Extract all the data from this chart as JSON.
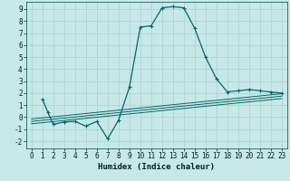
{
  "title": "",
  "xlabel": "Humidex (Indice chaleur)",
  "ylabel": "",
  "bg_color": "#c8e8e8",
  "line_color": "#006868",
  "grid_color": "#a8d0d0",
  "xlim": [
    -0.5,
    23.5
  ],
  "ylim": [
    -2.6,
    9.6
  ],
  "xticks": [
    0,
    1,
    2,
    3,
    4,
    5,
    6,
    7,
    8,
    9,
    10,
    11,
    12,
    13,
    14,
    15,
    16,
    17,
    18,
    19,
    20,
    21,
    22,
    23
  ],
  "yticks": [
    -2,
    -1,
    0,
    1,
    2,
    3,
    4,
    5,
    6,
    7,
    8,
    9
  ],
  "series": [
    [
      1,
      1.5
    ],
    [
      1.5,
      0.4
    ],
    [
      2,
      -0.6
    ],
    [
      3,
      -0.4
    ],
    [
      4,
      -0.35
    ],
    [
      5,
      -0.75
    ],
    [
      6,
      -0.35
    ],
    [
      7,
      -1.8
    ],
    [
      8,
      -0.25
    ],
    [
      9,
      2.5
    ],
    [
      10,
      7.5
    ],
    [
      11,
      7.6
    ],
    [
      12,
      9.1
    ],
    [
      13,
      9.2
    ],
    [
      14,
      9.1
    ],
    [
      15,
      7.4
    ],
    [
      16,
      5.0
    ],
    [
      17,
      3.2
    ],
    [
      18,
      2.1
    ],
    [
      19,
      2.2
    ],
    [
      20,
      2.3
    ],
    [
      21,
      2.2
    ],
    [
      22,
      2.1
    ],
    [
      23,
      2.0
    ]
  ],
  "linear1": {
    "x": [
      0,
      23
    ],
    "y": [
      -0.55,
      1.55
    ]
  },
  "linear2": {
    "x": [
      0,
      23
    ],
    "y": [
      -0.35,
      1.75
    ]
  },
  "linear3": {
    "x": [
      0,
      23
    ],
    "y": [
      -0.15,
      1.95
    ]
  },
  "xlabel_fontsize": 6.5,
  "tick_fontsize": 5.5
}
